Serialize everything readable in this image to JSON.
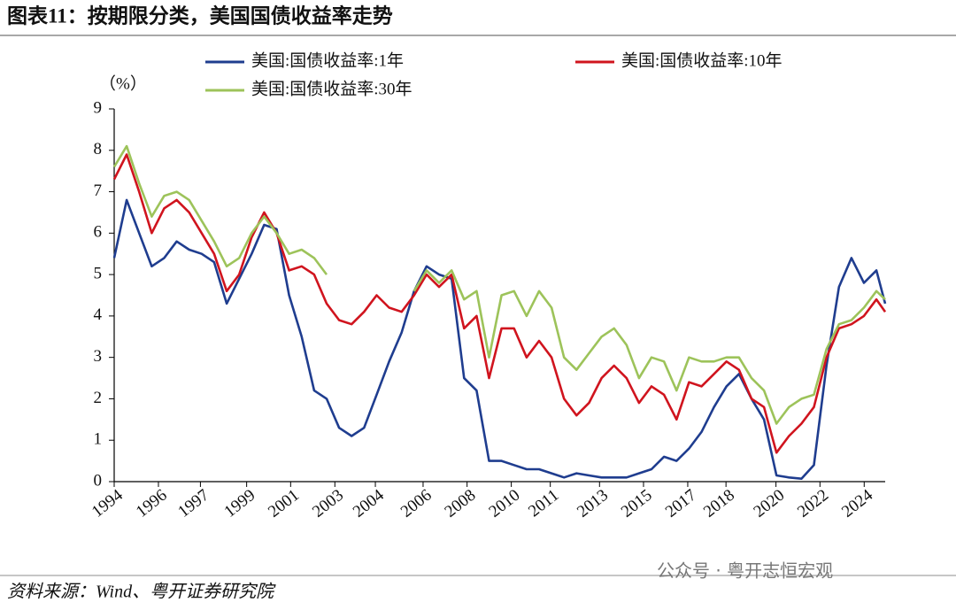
{
  "chart_data": {
    "type": "line",
    "title": "图表11：按期限分类，美国国债收益率走势",
    "y_label": "（%）",
    "source": "资料来源：Wind、粤开证券研究院",
    "watermark": "公众号 · 粤开志恒宏观",
    "legend": "top",
    "grid": false,
    "xlim": [
      1994,
      2024.85
    ],
    "xticks": [
      {
        "value": 1994.0,
        "label": "1994"
      },
      {
        "value": 1995.77,
        "label": "1996"
      },
      {
        "value": 1997.45,
        "label": "1997"
      },
      {
        "value": 1999.3,
        "label": "1999"
      },
      {
        "value": 2001.06,
        "label": "2001"
      },
      {
        "value": 2002.83,
        "label": "2003"
      },
      {
        "value": 2004.45,
        "label": "2004"
      },
      {
        "value": 2006.36,
        "label": "2006"
      },
      {
        "value": 2008.12,
        "label": "2008"
      },
      {
        "value": 2009.89,
        "label": "2010"
      },
      {
        "value": 2011.45,
        "label": "2011"
      },
      {
        "value": 2013.42,
        "label": "2013"
      },
      {
        "value": 2015.18,
        "label": "2015"
      },
      {
        "value": 2016.95,
        "label": "2017"
      },
      {
        "value": 2018.48,
        "label": "2018"
      },
      {
        "value": 2020.48,
        "label": "2020"
      },
      {
        "value": 2022.24,
        "label": "2022"
      },
      {
        "value": 2024.01,
        "label": "2024"
      }
    ],
    "ylim": [
      0,
      9
    ],
    "yticks": [
      0,
      1,
      2,
      3,
      4,
      5,
      6,
      7,
      8,
      9
    ],
    "x": [
      1994.0,
      1994.5,
      1995.0,
      1995.5,
      1996.0,
      1996.5,
      1997.0,
      1997.5,
      1998.0,
      1998.5,
      1999.0,
      1999.5,
      2000.0,
      2000.5,
      2001.0,
      2001.5,
      2002.0,
      2002.5,
      2003.0,
      2003.5,
      2004.0,
      2004.5,
      2005.0,
      2005.5,
      2006.0,
      2006.5,
      2007.0,
      2007.5,
      2008.0,
      2008.5,
      2009.0,
      2009.5,
      2010.0,
      2010.5,
      2011.0,
      2011.5,
      2012.0,
      2012.5,
      2013.0,
      2013.5,
      2014.0,
      2014.5,
      2015.0,
      2015.5,
      2016.0,
      2016.5,
      2017.0,
      2017.5,
      2018.0,
      2018.5,
      2019.0,
      2019.5,
      2020.0,
      2020.5,
      2021.0,
      2021.5,
      2022.0,
      2022.5,
      2023.0,
      2023.5,
      2024.0,
      2024.5,
      2024.85
    ],
    "series": [
      {
        "name": "美国:国债收益率:1年",
        "color": "#1f3d8f",
        "values": [
          5.4,
          6.8,
          6.0,
          5.2,
          5.4,
          5.8,
          5.6,
          5.5,
          5.3,
          4.3,
          4.9,
          5.5,
          6.2,
          6.1,
          4.5,
          3.5,
          2.2,
          2.0,
          1.3,
          1.1,
          1.3,
          2.1,
          2.9,
          3.6,
          4.6,
          5.2,
          5.0,
          4.9,
          2.5,
          2.2,
          0.5,
          0.5,
          0.4,
          0.3,
          0.3,
          0.2,
          0.1,
          0.2,
          0.15,
          0.1,
          0.1,
          0.1,
          0.2,
          0.3,
          0.6,
          0.5,
          0.8,
          1.2,
          1.8,
          2.3,
          2.6,
          2.0,
          1.5,
          0.15,
          0.1,
          0.07,
          0.4,
          2.8,
          4.7,
          5.4,
          4.8,
          5.1,
          4.3
        ]
      },
      {
        "name": "美国:国债收益率:10年",
        "color": "#d0141e",
        "values": [
          7.3,
          7.9,
          7.0,
          6.0,
          6.6,
          6.8,
          6.5,
          6.0,
          5.5,
          4.6,
          5.0,
          5.9,
          6.5,
          6.0,
          5.1,
          5.2,
          5.0,
          4.3,
          3.9,
          3.8,
          4.1,
          4.5,
          4.2,
          4.1,
          4.5,
          5.0,
          4.7,
          5.0,
          3.7,
          4.0,
          2.5,
          3.7,
          3.7,
          3.0,
          3.4,
          3.0,
          2.0,
          1.6,
          1.9,
          2.5,
          2.8,
          2.5,
          1.9,
          2.3,
          2.1,
          1.5,
          2.4,
          2.3,
          2.6,
          2.9,
          2.7,
          2.0,
          1.8,
          0.7,
          1.1,
          1.4,
          1.8,
          3.0,
          3.7,
          3.8,
          4.0,
          4.4,
          4.1
        ]
      },
      {
        "name": "美国:国债收益率:30年",
        "color": "#9dc35a",
        "values": [
          7.6,
          8.1,
          7.2,
          6.4,
          6.9,
          7.0,
          6.8,
          6.3,
          5.8,
          5.2,
          5.4,
          6.0,
          6.4,
          6.0,
          5.5,
          5.6,
          5.4,
          5.0,
          null,
          null,
          null,
          null,
          null,
          null,
          4.6,
          5.1,
          4.8,
          5.1,
          4.4,
          4.6,
          3.0,
          4.5,
          4.6,
          4.0,
          4.6,
          4.2,
          3.0,
          2.7,
          3.1,
          3.5,
          3.7,
          3.3,
          2.5,
          3.0,
          2.9,
          2.2,
          3.0,
          2.9,
          2.9,
          3.0,
          3.0,
          2.5,
          2.2,
          1.4,
          1.8,
          2.0,
          2.1,
          3.2,
          3.8,
          3.9,
          4.2,
          4.6,
          4.4
        ]
      }
    ]
  }
}
